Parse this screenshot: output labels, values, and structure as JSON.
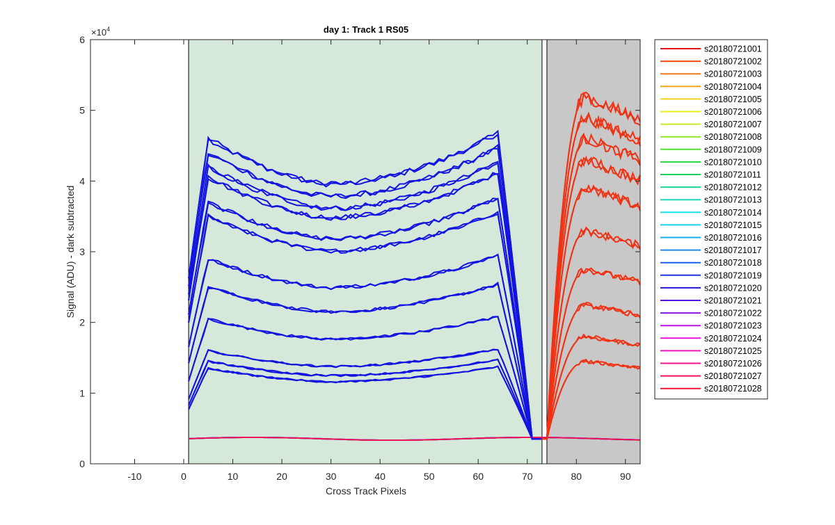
{
  "chart_data": {
    "type": "line",
    "title": "day 1: Track 1  RS05",
    "xlabel": "Cross Track Pixels",
    "ylabel": "Signal (ADU) - dark subtracted",
    "xlim": [
      -19,
      93
    ],
    "ylim": [
      0,
      60000
    ],
    "x_ticks": [
      -10,
      0,
      10,
      20,
      30,
      40,
      50,
      60,
      70,
      80,
      90
    ],
    "y_ticks": [
      0,
      1,
      2,
      3,
      4,
      5,
      6
    ],
    "y_exponent_label": "×10",
    "y_exponent_power": "4",
    "grid": false,
    "legend_position": "outside-right",
    "regions": [
      {
        "name": "green-region",
        "x_range": [
          1,
          73
        ],
        "color": "#d5e8da"
      },
      {
        "name": "gray-region",
        "x_range": [
          74,
          93
        ],
        "color": "#c8c8c8"
      }
    ],
    "blue_profile_peaks": [
      46000,
      44000,
      42000,
      40500,
      37000,
      35000,
      29000,
      25000,
      20500,
      16000,
      14500,
      13500
    ],
    "red_profile_peaks": [
      52000,
      49000,
      46000,
      43000,
      39000,
      33000,
      27500,
      22500,
      18000,
      14500
    ],
    "baseline": 3500,
    "series": [
      {
        "name": "s20180721001",
        "color": "#e51212"
      },
      {
        "name": "s20180721002",
        "color": "#f24a0d"
      },
      {
        "name": "s20180721003",
        "color": "#f07a17"
      },
      {
        "name": "s20180721004",
        "color": "#f2a31b"
      },
      {
        "name": "s20180721005",
        "color": "#f5d218"
      },
      {
        "name": "s20180721006",
        "color": "#ecec1a"
      },
      {
        "name": "s20180721007",
        "color": "#c9ec2a"
      },
      {
        "name": "s20180721008",
        "color": "#8ee828"
      },
      {
        "name": "s20180721009",
        "color": "#4ce02a"
      },
      {
        "name": "s20180721010",
        "color": "#1fd93a"
      },
      {
        "name": "s20180721011",
        "color": "#17d460"
      },
      {
        "name": "s20180721012",
        "color": "#1ad690"
      },
      {
        "name": "s20180721013",
        "color": "#18d6ba"
      },
      {
        "name": "s20180721014",
        "color": "#17e0e0"
      },
      {
        "name": "s20180721015",
        "color": "#1ad0f2"
      },
      {
        "name": "s20180721016",
        "color": "#1aacf2"
      },
      {
        "name": "s20180721017",
        "color": "#1a88f0"
      },
      {
        "name": "s20180721018",
        "color": "#1a5ee8"
      },
      {
        "name": "s20180721019",
        "color": "#1a33e6"
      },
      {
        "name": "s20180721020",
        "color": "#2414d9"
      },
      {
        "name": "s20180721021",
        "color": "#5a12e0"
      },
      {
        "name": "s20180721022",
        "color": "#8a12e6"
      },
      {
        "name": "s20180721023",
        "color": "#c012e6"
      },
      {
        "name": "s20180721024",
        "color": "#ec12e0"
      },
      {
        "name": "s20180721025",
        "color": "#f014b8"
      },
      {
        "name": "s20180721026",
        "color": "#f0148a"
      },
      {
        "name": "s20180721027",
        "color": "#f0145e"
      },
      {
        "name": "s20180721028",
        "color": "#f01438"
      }
    ]
  }
}
